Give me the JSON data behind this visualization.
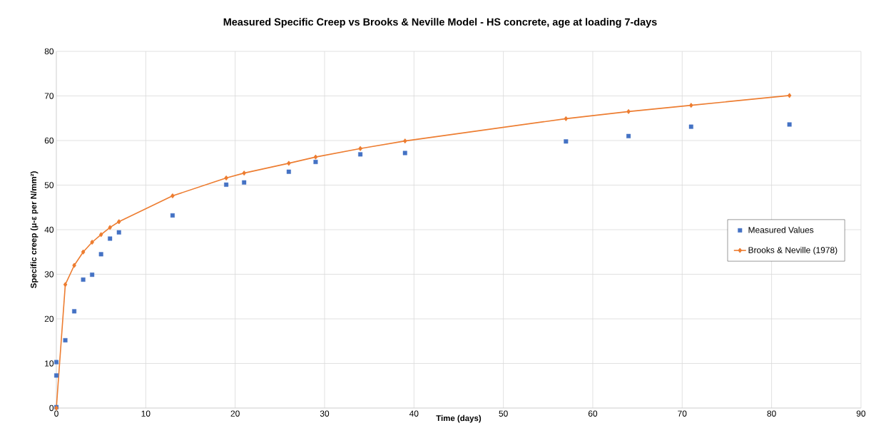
{
  "chart_data": {
    "type": "line",
    "title": "Measured Specific Creep vs Brooks & Neville Model - HS concrete, age at loading 7-days",
    "xlabel": "Time (days)",
    "ylabel": "Specific creep (**μ-ε**  per N/mm²)",
    "xlim": [
      0,
      90
    ],
    "xticks": [
      0,
      10,
      20,
      30,
      40,
      50,
      60,
      70,
      80,
      90
    ],
    "ylim": [
      0,
      80
    ],
    "yticks": [
      0,
      10,
      20,
      30,
      40,
      50,
      60,
      70,
      80
    ],
    "grid": true,
    "legend": "right",
    "series": [
      {
        "name": "Measured Values",
        "type": "scatter",
        "marker": "square",
        "color": "#4472c4",
        "x": [
          0,
          0,
          0,
          1,
          2,
          3,
          4,
          5,
          6,
          7,
          13,
          19,
          21,
          26,
          29,
          34,
          39,
          57,
          64,
          71,
          82
        ],
        "values": [
          0.2,
          7.3,
          10.3,
          15.2,
          21.7,
          28.8,
          29.9,
          34.5,
          38,
          39.4,
          43.2,
          50.1,
          50.6,
          53,
          55.2,
          56.9,
          57.2,
          59.8,
          61,
          63.1,
          63.6
        ]
      },
      {
        "name": "Brooks & Neville (1978)",
        "type": "line",
        "marker": "diamond",
        "line_style": "solid",
        "color": "#ed7d31",
        "x": [
          0,
          1,
          2,
          3,
          4,
          5,
          6,
          7,
          13,
          19,
          21,
          26,
          29,
          34,
          39,
          57,
          64,
          71,
          82
        ],
        "values": [
          0,
          27.7,
          32,
          35,
          37.2,
          38.9,
          40.5,
          41.8,
          47.6,
          51.6,
          52.7,
          54.9,
          56.3,
          58.2,
          59.9,
          64.9,
          66.5,
          67.9,
          70.1
        ]
      }
    ]
  }
}
